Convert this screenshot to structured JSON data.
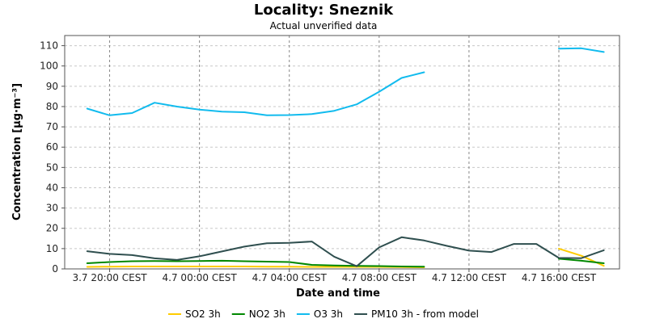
{
  "chart_data": {
    "type": "line",
    "title": "Locality: Sneznik",
    "subtitle": "Actual unverified data",
    "xlabel": "Date and time",
    "ylabel": "Concentration [µg·m⁻³]",
    "ylim": [
      0,
      115
    ],
    "yticks": [
      0,
      10,
      20,
      30,
      40,
      50,
      60,
      70,
      80,
      90,
      100,
      110
    ],
    "x_hours_shown": [
      "3.7 18:00",
      "4.7 18:00"
    ],
    "xticks": [
      {
        "hour": 20,
        "label": "3.7 20:00 CEST"
      },
      {
        "hour": 24,
        "label": "4.7 00:00 CEST"
      },
      {
        "hour": 28,
        "label": "4.7 04:00 CEST"
      },
      {
        "hour": 32,
        "label": "4.7 08:00 CEST"
      },
      {
        "hour": 36,
        "label": "4.7 12:00 CEST"
      },
      {
        "hour": 40,
        "label": "4.7 16:00 CEST"
      }
    ],
    "grid": true,
    "legend_position": "bottom",
    "series": [
      {
        "name": "SO2 3h",
        "color": "#ffcc00",
        "points": [
          [
            19,
            1.0
          ],
          [
            20,
            1.1
          ],
          [
            21,
            1.2
          ],
          [
            22,
            1.2
          ],
          [
            23,
            1.2
          ],
          [
            24,
            1.2
          ],
          [
            25,
            1.2
          ],
          [
            26,
            1.2
          ],
          [
            27,
            1.1
          ],
          [
            28,
            1.1
          ],
          [
            29,
            1.0
          ],
          [
            30,
            1.0
          ],
          [
            31,
            1.0
          ],
          [
            32,
            1.0
          ],
          [
            33,
            0.9
          ],
          [
            34,
            0.8
          ],
          [
            35,
            null
          ],
          [
            36,
            null
          ],
          [
            37,
            null
          ],
          [
            38,
            null
          ],
          [
            39,
            null
          ],
          [
            40,
            10.0
          ],
          [
            41,
            6.5
          ],
          [
            42,
            1.5
          ]
        ]
      },
      {
        "name": "NO2 3h",
        "color": "#008800",
        "points": [
          [
            19,
            2.8
          ],
          [
            20,
            3.4
          ],
          [
            21,
            3.8
          ],
          [
            22,
            3.9
          ],
          [
            23,
            3.8
          ],
          [
            24,
            3.9
          ],
          [
            25,
            4.0
          ],
          [
            26,
            3.8
          ],
          [
            27,
            3.6
          ],
          [
            28,
            3.4
          ],
          [
            29,
            2.0
          ],
          [
            30,
            1.7
          ],
          [
            31,
            1.5
          ],
          [
            32,
            1.4
          ],
          [
            33,
            1.2
          ],
          [
            34,
            1.1
          ],
          [
            35,
            null
          ],
          [
            36,
            null
          ],
          [
            37,
            null
          ],
          [
            38,
            null
          ],
          [
            39,
            null
          ],
          [
            40,
            5.0
          ],
          [
            41,
            4.0
          ],
          [
            42,
            2.8
          ]
        ]
      },
      {
        "name": "O3 3h",
        "color": "#11bbee",
        "points": [
          [
            19,
            79
          ],
          [
            20,
            75.7
          ],
          [
            21,
            76.8
          ],
          [
            22,
            81.9
          ],
          [
            23,
            80
          ],
          [
            24,
            78.5
          ],
          [
            25,
            77.5
          ],
          [
            26,
            77.2
          ],
          [
            27,
            75.7
          ],
          [
            28,
            75.8
          ],
          [
            29,
            76.3
          ],
          [
            30,
            77.9
          ],
          [
            31,
            81.1
          ],
          [
            32,
            87.3
          ],
          [
            33,
            94.1
          ],
          [
            34,
            96.9
          ],
          [
            35,
            null
          ],
          [
            36,
            null
          ],
          [
            37,
            null
          ],
          [
            38,
            null
          ],
          [
            39,
            null
          ],
          [
            40,
            108.5
          ],
          [
            41,
            108.7
          ],
          [
            42,
            106.9
          ]
        ]
      },
      {
        "name": "PM10 3h - from model",
        "color": "#2f4f4f",
        "points": [
          [
            19,
            8.7
          ],
          [
            20,
            7.4
          ],
          [
            21,
            6.8
          ],
          [
            22,
            5.2
          ],
          [
            23,
            4.4
          ],
          [
            24,
            6.2
          ],
          [
            25,
            8.6
          ],
          [
            26,
            11
          ],
          [
            27,
            12.6
          ],
          [
            28,
            12.8
          ],
          [
            29,
            13.5
          ],
          [
            30,
            6.0
          ],
          [
            31,
            1.3
          ],
          [
            32,
            10.6
          ],
          [
            33,
            15.6
          ],
          [
            34,
            14.0
          ],
          [
            35,
            11.4
          ],
          [
            36,
            9.0
          ],
          [
            37,
            8.3
          ],
          [
            38,
            12.3
          ],
          [
            39,
            12.3
          ],
          [
            40,
            5.4
          ],
          [
            41,
            5.3
          ],
          [
            42,
            9.2
          ]
        ]
      }
    ]
  }
}
